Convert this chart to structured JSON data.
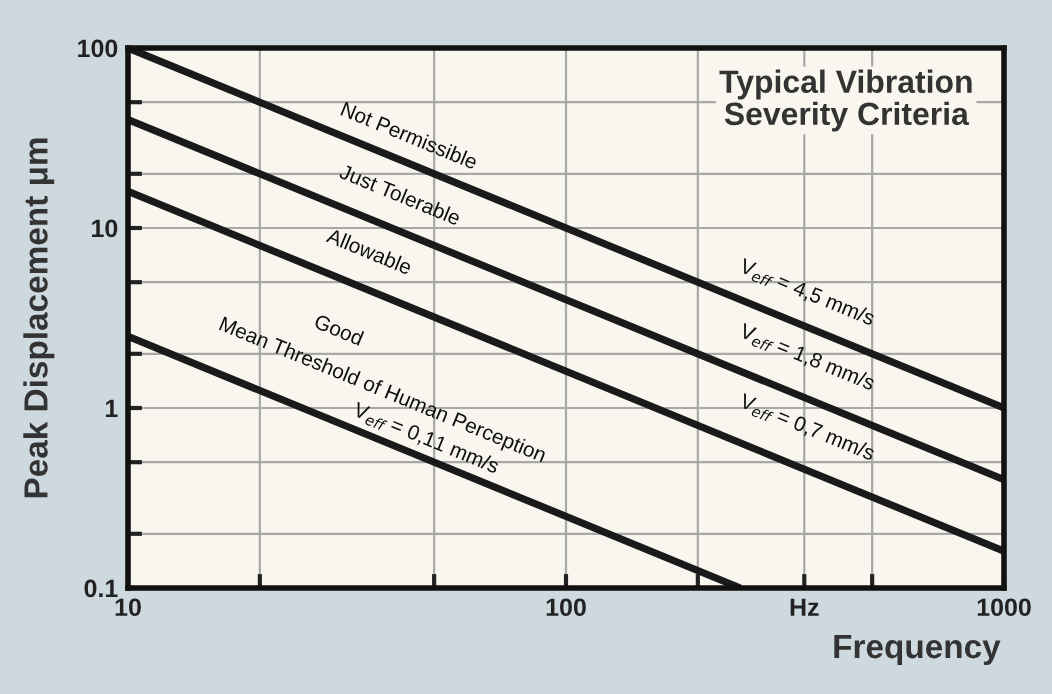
{
  "chart_data": {
    "type": "line",
    "title": "Typical Vibration\nSeverity Criteria",
    "xlabel": "Frequency",
    "ylabel": "Peak Displacement μm",
    "series": [
      {
        "color": "#1a1a1a",
        "x": [
          10,
          1000
        ],
        "values": [
          100,
          1
        ]
      },
      {
        "color": "#1a1a1a",
        "x": [
          10,
          1000
        ],
        "values": [
          40,
          0.4
        ]
      },
      {
        "color": "#1a1a1a",
        "x": [
          10,
          1000
        ],
        "values": [
          16,
          0.16
        ]
      },
      {
        "color": "#1a1a1a",
        "x": [
          10,
          250
        ],
        "values": [
          2.5,
          0.1
        ]
      }
    ],
    "annotations": [
      "Not Permissible",
      "Just Tolerable",
      "Allowable",
      "Good",
      "Mean Threshold of Human Perception",
      "V$_{eff}$ = 0,11 mm/s",
      "V$_{eff}$ = 4,5 mm/s",
      "V$_{eff}$ = 1,8 mm/s",
      "V$_{eff}$ = 0,7 mm/s"
    ],
    "log": "xy",
    "xlim": [
      10,
      1000
    ],
    "ylim": [
      0.1,
      100
    ],
    "xticks": [
      10,
      {
        "value": 20,
        "label": null
      },
      {
        "value": 50,
        "label": null
      },
      100,
      {
        "value": 200,
        "label": null
      },
      {
        "value": 350,
        "label": "Hz"
      },
      {
        "value": 500,
        "label": null
      },
      1000
    ],
    "yticks": [
      0.1,
      {
        "value": 0.2,
        "label": null
      },
      {
        "value": 0.5,
        "label": null
      },
      1,
      {
        "value": 2,
        "label": null
      },
      {
        "value": 5,
        "label": null
      },
      10,
      {
        "value": 20,
        "label": null
      },
      {
        "value": 50,
        "label": null
      },
      100
    ],
    "grid": true,
    "marker": "none",
    "line_style": "solid"
  }
}
